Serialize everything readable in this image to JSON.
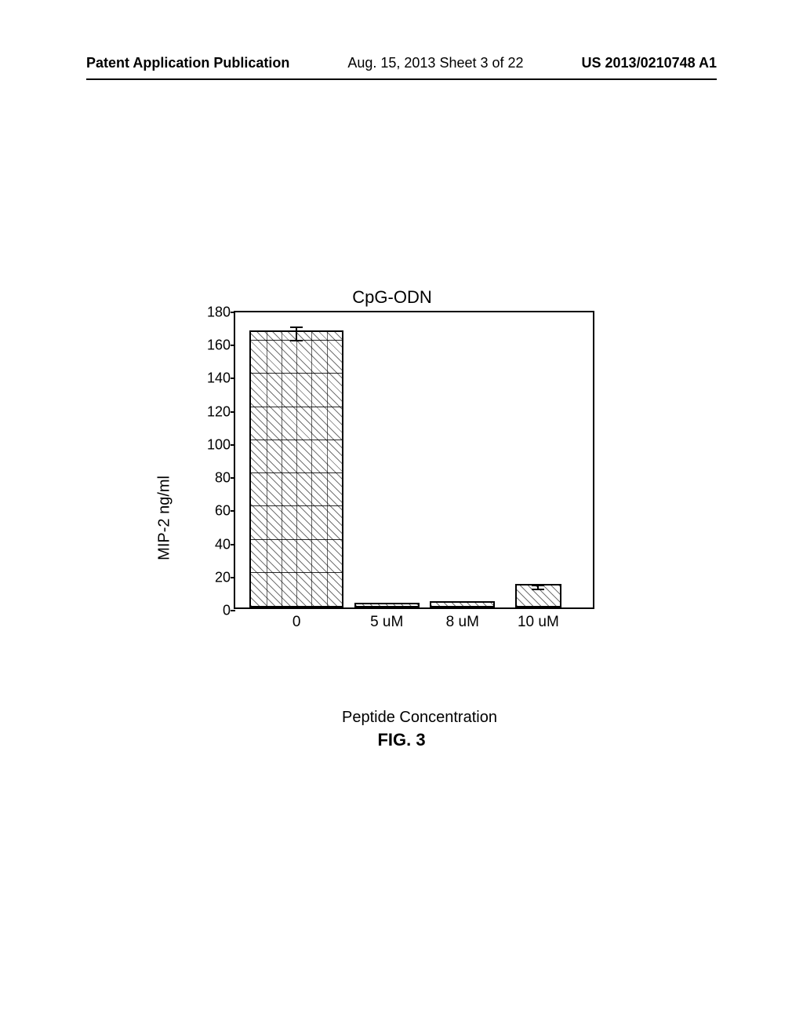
{
  "header": {
    "left": "Patent Application Publication",
    "center": "Aug. 15, 2013  Sheet 3 of 22",
    "right": "US 2013/0210748 A1"
  },
  "figure_caption": "FIG. 3",
  "chart": {
    "type": "bar",
    "title": "CpG-ODN",
    "ylabel": "MIP-2 ng/ml",
    "xlabel": "Peptide Concentration",
    "ylim": [
      0,
      180
    ],
    "ytick_step": 20,
    "yticks": [
      0,
      20,
      40,
      60,
      80,
      100,
      120,
      140,
      160,
      180
    ],
    "categories": [
      "0",
      "5 uM",
      "8 uM",
      "10 uM"
    ],
    "values": [
      167,
      3,
      4,
      14
    ],
    "errors": [
      4,
      0,
      0,
      1
    ],
    "bar_colors": [
      "#ffffff",
      "#ffffff",
      "#ffffff",
      "#ffffff"
    ],
    "bar_border": "#000000",
    "hatch": "diagonal-45",
    "bar0_vgrid_lines": 6,
    "background_color": "#ffffff",
    "axis_color": "#000000",
    "title_fontsize": 22,
    "label_fontsize": 20,
    "tick_fontsize": 18,
    "bar_positions_pct": [
      17,
      42,
      63,
      84
    ],
    "bar_widths_pct": [
      26,
      18,
      18,
      13
    ]
  }
}
